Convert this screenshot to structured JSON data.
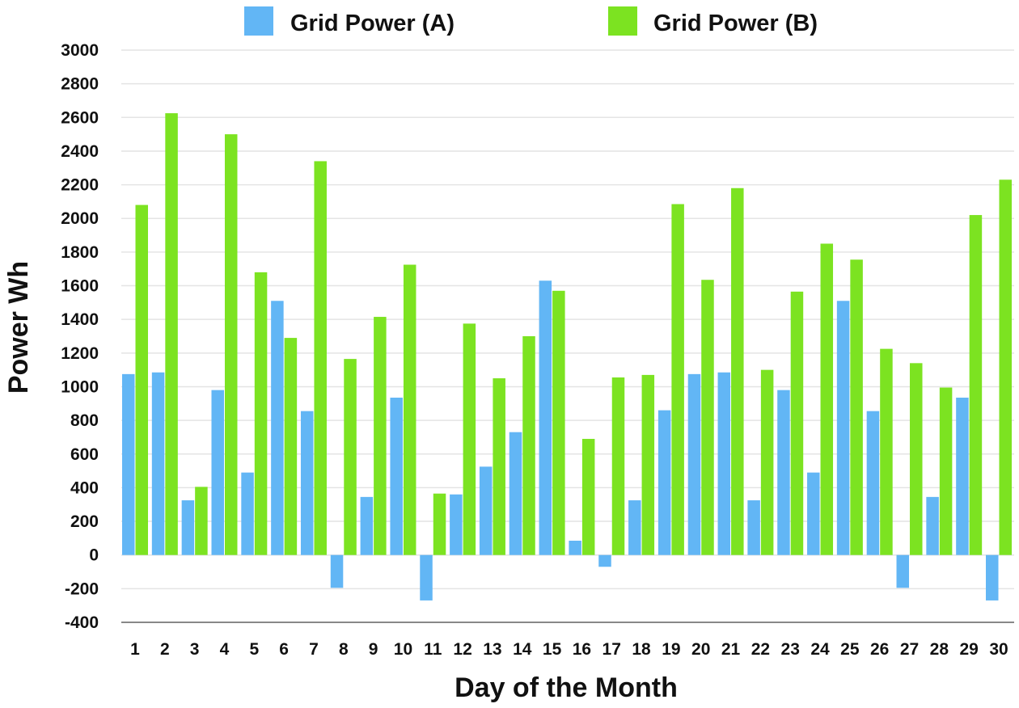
{
  "chart_data": {
    "type": "bar",
    "title": "",
    "xlabel": "Day of the Month",
    "ylabel": "Power Wh",
    "ylim": [
      -400,
      3000
    ],
    "yticks": [
      3000,
      2800,
      2600,
      2400,
      2200,
      2000,
      1800,
      1600,
      1400,
      1200,
      1000,
      800,
      600,
      400,
      200,
      0,
      -200,
      -400
    ],
    "grid": true,
    "legend_position": "top",
    "categories": [
      "1",
      "2",
      "3",
      "4",
      "5",
      "6",
      "7",
      "8",
      "9",
      "10",
      "11",
      "12",
      "13",
      "14",
      "15",
      "16",
      "17",
      "18",
      "19",
      "20",
      "21",
      "22",
      "23",
      "24",
      "25",
      "26",
      "27",
      "28",
      "29",
      "30"
    ],
    "series": [
      {
        "name": "Grid Power (A)",
        "color": "#62b6f5",
        "values": [
          1075,
          1085,
          325,
          980,
          490,
          1510,
          855,
          -195,
          345,
          935,
          -270,
          360,
          525,
          730,
          1630,
          85,
          -70,
          325,
          860,
          1075,
          1085,
          325,
          980,
          490,
          1510,
          855,
          -195,
          345,
          935,
          -270
        ]
      },
      {
        "name": "Grid Power (B)",
        "color": "#7ce321",
        "values": [
          2080,
          2625,
          405,
          2500,
          1680,
          1290,
          2340,
          1165,
          1415,
          1725,
          365,
          1375,
          1050,
          1300,
          1570,
          690,
          1055,
          1070,
          2085,
          1635,
          2180,
          1100,
          1565,
          1850,
          1755,
          1225,
          1140,
          995,
          2020,
          2230
        ]
      }
    ]
  }
}
